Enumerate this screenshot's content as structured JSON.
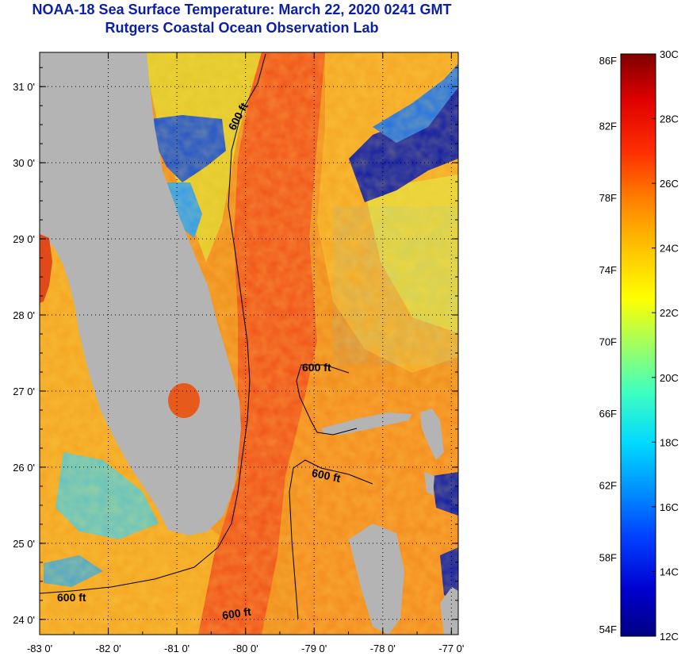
{
  "title": "NOAA-18 Sea Surface Temperature:  March 22, 2020 0241 GMT",
  "subtitle": "Rutgers Coastal Ocean Observation Lab",
  "map": {
    "lon_range": [
      -83,
      -76.9
    ],
    "lat_range": [
      23.8,
      31.45
    ],
    "lon_ticks": [
      -83,
      -82,
      -81,
      -80,
      -79,
      -78,
      -77
    ],
    "lon_tick_labels": [
      "-83 0'",
      "-82 0'",
      "-81 0'",
      "-80 0'",
      "-79 0'",
      "-78 0'",
      "-77 0'"
    ],
    "lat_ticks": [
      24,
      25,
      26,
      27,
      28,
      29,
      30,
      31
    ],
    "lat_tick_labels": [
      "24 0'",
      "25 0'",
      "26 0'",
      "27 0'",
      "28 0'",
      "29 0'",
      "30 0'",
      "31 0'"
    ],
    "grid": "dotted",
    "land_color": "#b4b4b4",
    "contour_labels": [
      "600 ft",
      "600 ft",
      "600 ft",
      "600 ft",
      "600 ft"
    ]
  },
  "colorbar": {
    "fahrenheit_labels": [
      "86F",
      "82F",
      "78F",
      "74F",
      "70F",
      "66F",
      "62F",
      "58F",
      "54F"
    ],
    "fahrenheit_values": [
      86,
      82,
      78,
      74,
      70,
      66,
      62,
      58,
      54
    ],
    "celsius_labels": [
      "30C",
      "28C",
      "26C",
      "24C",
      "22C",
      "20C",
      "18C",
      "16C",
      "14C",
      "12C"
    ],
    "celsius_values": [
      30,
      28,
      26,
      24,
      22,
      20,
      18,
      16,
      14,
      12
    ],
    "range_celsius": [
      12,
      30
    ],
    "colors": [
      "#000080",
      "#0000d0",
      "#0040ff",
      "#0090ff",
      "#00d8ff",
      "#40ffc0",
      "#a0ff60",
      "#ffff00",
      "#ffc000",
      "#ff8000",
      "#ff3000",
      "#e00000",
      "#800000"
    ]
  }
}
